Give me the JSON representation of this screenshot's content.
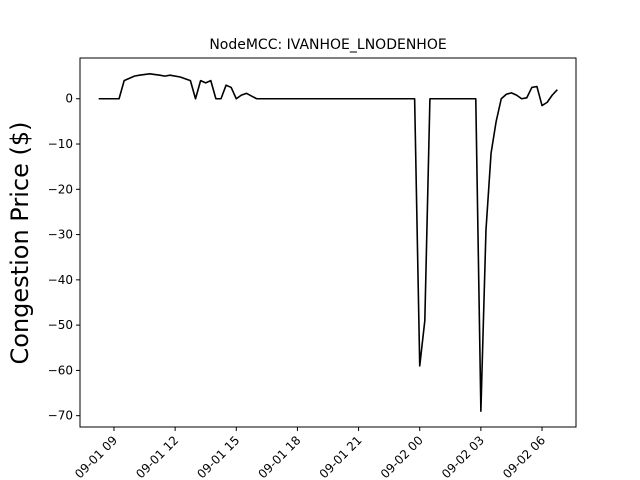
{
  "chart_data": {
    "type": "line",
    "title": "NodeMCC: IVANHOE_LNODENHOE",
    "xlabel": "",
    "ylabel": "Congestion Price ($)",
    "x_is_time": true,
    "xlim": [
      "2021-09-01 07:20",
      "2021-09-02 07:40"
    ],
    "ylim": [
      -72.5,
      9
    ],
    "yticks": [
      0,
      -10,
      -20,
      -30,
      -40,
      -50,
      -60,
      -70
    ],
    "xticks": [
      "2021-09-01 09:00",
      "2021-09-01 12:00",
      "2021-09-01 15:00",
      "2021-09-01 18:00",
      "2021-09-01 21:00",
      "2021-09-02 00:00",
      "2021-09-02 03:00",
      "2021-09-02 06:00"
    ],
    "xtick_labels": [
      "09-01 09",
      "09-01 12",
      "09-01 15",
      "09-01 18",
      "09-01 21",
      "09-02 00",
      "09-02 03",
      "09-02 06"
    ],
    "grid": false,
    "series": [
      {
        "color": "#000000",
        "x": [
          "2021-09-01 08:15",
          "2021-09-01 09:15",
          "2021-09-01 09:30",
          "2021-09-01 10:00",
          "2021-09-01 10:15",
          "2021-09-01 10:45",
          "2021-09-01 11:15",
          "2021-09-01 11:30",
          "2021-09-01 11:45",
          "2021-09-01 12:15",
          "2021-09-01 12:45",
          "2021-09-01 13:00",
          "2021-09-01 13:15",
          "2021-09-01 13:30",
          "2021-09-01 13:45",
          "2021-09-01 14:00",
          "2021-09-01 14:15",
          "2021-09-01 14:30",
          "2021-09-01 14:45",
          "2021-09-01 15:00",
          "2021-09-01 15:15",
          "2021-09-01 15:30",
          "2021-09-01 15:45",
          "2021-09-01 16:00",
          "2021-09-01 16:15",
          "2021-09-01 16:30",
          "2021-09-01 16:45",
          "2021-09-01 17:00",
          "2021-09-01 17:15",
          "2021-09-01 17:30",
          "2021-09-01 17:45",
          "2021-09-01 18:00",
          "2021-09-01 18:15",
          "2021-09-01 18:30",
          "2021-09-01 18:45",
          "2021-09-01 19:00",
          "2021-09-01 19:15",
          "2021-09-01 19:30",
          "2021-09-01 19:45",
          "2021-09-01 20:00",
          "2021-09-01 20:15",
          "2021-09-01 20:30",
          "2021-09-01 20:45",
          "2021-09-01 21:00",
          "2021-09-01 21:15",
          "2021-09-01 21:30",
          "2021-09-01 21:45",
          "2021-09-01 22:00",
          "2021-09-01 22:15",
          "2021-09-01 22:30",
          "2021-09-01 22:45",
          "2021-09-01 23:00",
          "2021-09-01 23:15",
          "2021-09-01 23:30",
          "2021-09-01 23:45",
          "2021-09-02 00:00",
          "2021-09-02 00:15",
          "2021-09-02 00:30",
          "2021-09-02 00:45",
          "2021-09-02 01:00",
          "2021-09-02 01:15",
          "2021-09-02 01:30",
          "2021-09-02 01:45",
          "2021-09-02 02:00",
          "2021-09-02 02:15",
          "2021-09-02 02:30",
          "2021-09-02 02:45",
          "2021-09-02 03:00",
          "2021-09-02 03:15",
          "2021-09-02 03:30",
          "2021-09-02 03:45",
          "2021-09-02 04:00",
          "2021-09-02 04:15",
          "2021-09-02 04:30",
          "2021-09-02 04:45",
          "2021-09-02 05:00",
          "2021-09-02 05:15",
          "2021-09-02 05:30",
          "2021-09-02 05:45",
          "2021-09-02 06:00",
          "2021-09-02 06:15",
          "2021-09-02 06:30",
          "2021-09-02 06:45"
        ],
        "y": [
          0,
          0,
          4,
          5,
          5.2,
          5.5,
          5.2,
          5,
          5.2,
          4.8,
          4,
          0,
          4,
          3.5,
          4,
          0,
          0,
          3,
          2.5,
          0,
          0.8,
          1.2,
          0.6,
          0,
          0,
          0,
          0,
          0,
          0,
          0,
          0,
          0,
          0,
          0,
          0,
          0,
          0,
          0,
          0,
          0,
          0,
          0,
          0,
          0,
          0,
          0,
          0,
          0,
          0,
          0,
          0,
          0,
          0,
          0,
          0,
          -59,
          -49,
          0,
          0,
          0,
          0,
          0,
          0,
          0,
          0,
          0,
          0,
          -69,
          -29,
          -12,
          -5,
          0,
          1,
          1.3,
          0.8,
          0,
          0.2,
          2.5,
          2.7,
          -1.5,
          -0.8,
          0.8,
          2
        ]
      }
    ]
  }
}
